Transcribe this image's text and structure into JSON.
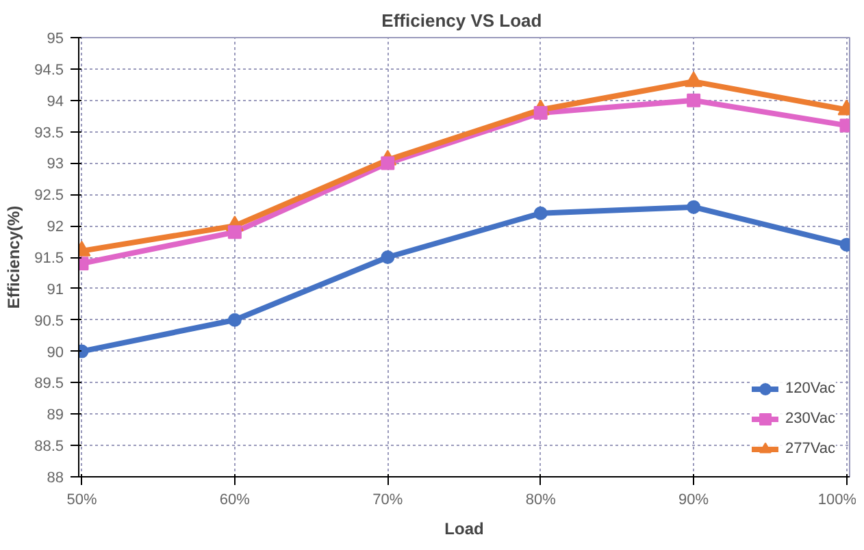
{
  "chart_data": {
    "type": "line",
    "title": "Efficiency VS  Load",
    "xlabel": "Load",
    "ylabel": "Efficiency(%)",
    "categories": [
      "50%",
      "60%",
      "70%",
      "80%",
      "90%",
      "100%"
    ],
    "series": [
      {
        "name": "120Vac",
        "color": "#4472c4",
        "marker": "circle",
        "values": [
          90.0,
          90.5,
          91.5,
          92.2,
          92.3,
          91.7
        ]
      },
      {
        "name": "230Vac",
        "color": "#e066c8",
        "marker": "square",
        "values": [
          91.4,
          91.9,
          93.0,
          93.8,
          94.0,
          93.6
        ]
      },
      {
        "name": "277Vac",
        "color": "#ed7d31",
        "marker": "triangle",
        "values": [
          91.6,
          92.0,
          93.05,
          93.85,
          94.3,
          93.85
        ]
      }
    ],
    "ylim": [
      88,
      95
    ],
    "yticks": [
      88,
      88.5,
      89,
      89.5,
      90,
      90.5,
      91,
      91.5,
      92,
      92.5,
      93,
      93.5,
      94,
      94.5,
      95
    ],
    "grid": true,
    "legend": "bottom right",
    "line_style": "solid"
  }
}
